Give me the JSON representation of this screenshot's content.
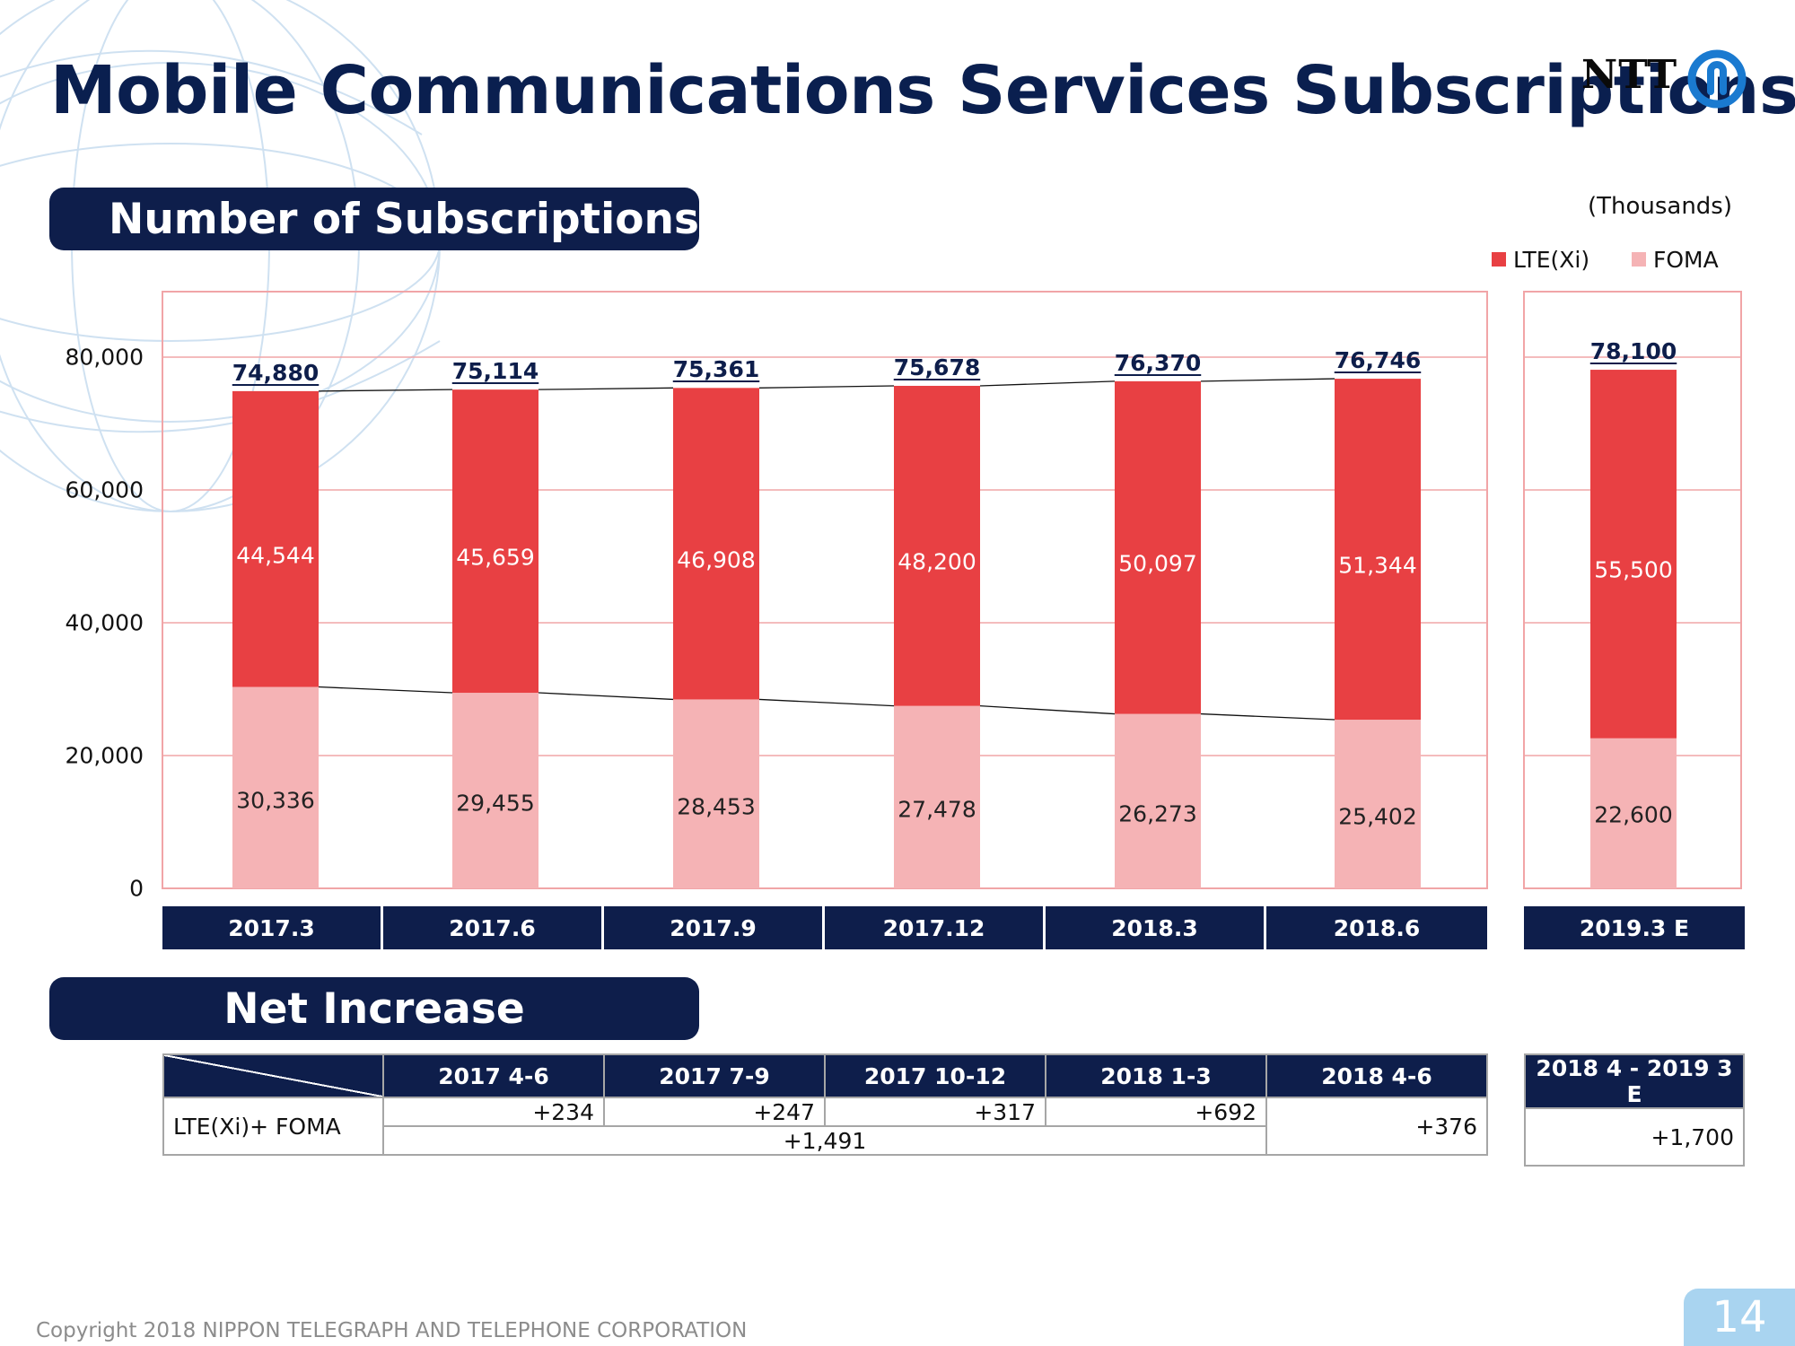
{
  "title": "Mobile Communications Services Subscriptions",
  "logo": {
    "text": "NTT"
  },
  "sections": {
    "subscriptions": "Number of Subscriptions",
    "net_increase": "Net Increase"
  },
  "units": "(Thousands)",
  "colors": {
    "lte": "#e84043",
    "foma": "#f5b3b5",
    "navy": "#0e1e4b",
    "frame": "#f1a5a7"
  },
  "chart_data": {
    "type": "bar",
    "stacked": true,
    "categories": [
      "2017.3",
      "2017.6",
      "2017.9",
      "2017.12",
      "2018.3",
      "2018.6",
      "2019.3 E"
    ],
    "series": [
      {
        "name": "FOMA",
        "values": [
          30336,
          29455,
          28453,
          27478,
          26273,
          25402,
          22600
        ]
      },
      {
        "name": "LTE(Xi)",
        "values": [
          44544,
          45659,
          46908,
          48200,
          50097,
          51344,
          55500
        ]
      }
    ],
    "totals": [
      74880,
      75114,
      75361,
      75678,
      76370,
      76746,
      78100
    ],
    "ylim": [
      0,
      90000
    ],
    "yticks": [
      0,
      20000,
      40000,
      60000,
      80000
    ],
    "grid": true,
    "legend_position": "top-right",
    "title": "Number of Subscriptions",
    "xlabel": "",
    "ylabel": ""
  },
  "net_increase": {
    "headers": [
      "2017 4-6",
      "2017 7-9",
      "2017 10-12",
      "2018 1-3",
      "2018 4-6"
    ],
    "forecast_header": "2018 4 - 2019 3 E",
    "row_label": "LTE(Xi)+ FOMA",
    "values": [
      "+234",
      "+247",
      "+317",
      "+692"
    ],
    "sum": "+1,491",
    "value_q5": "+376",
    "forecast_value": "+1,700"
  },
  "footer": "Copyright 2018 NIPPON TELEGRAPH AND TELEPHONE CORPORATION",
  "page_number": "14"
}
